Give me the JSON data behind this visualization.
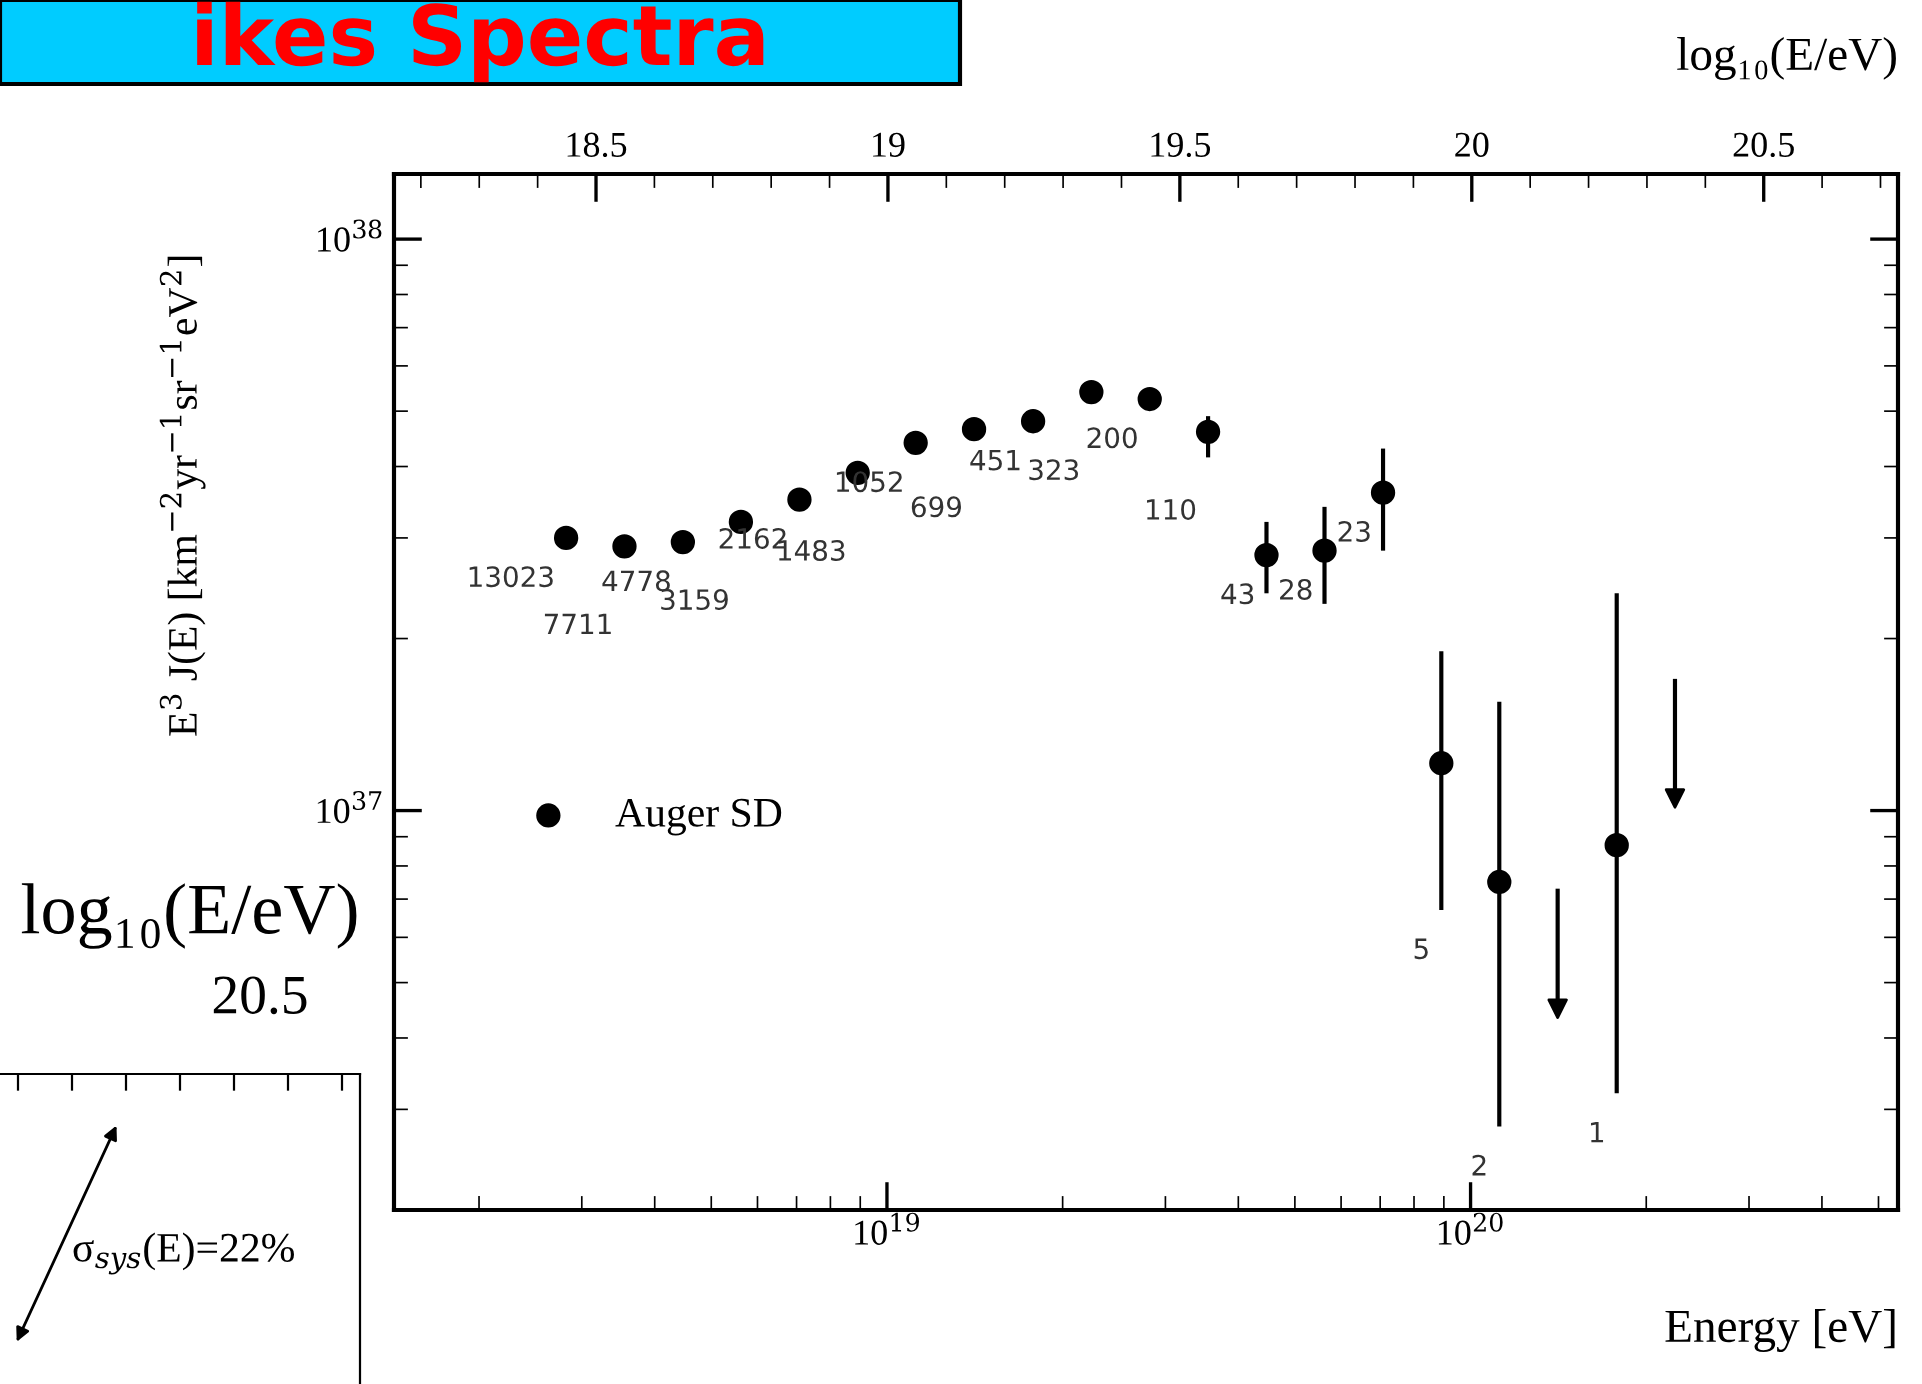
{
  "chart_data": [
    {
      "type": "scatter",
      "title": "ikes Spectra",
      "xlabel": "Energy [eV]",
      "ylabel": "E$^{3}$ J(E) [km$^{−2}$yr$^{−1}$sr$^{−1}$eV$^{2}$]",
      "x2label": "log₁₀(E/eV)",
      "log": "xy",
      "xlim": [
        1.43e+18,
        5.4e+20
      ],
      "ylim": [
        2e+36,
        1.3e+38
      ],
      "xticks": [
        {
          "value": 1e+19,
          "label": "10$^{19}$"
        },
        {
          "value": 1e+20,
          "label": "10$^{20}$"
        }
      ],
      "yticks": [
        {
          "value": 1e+37,
          "label": "10$^{37}$"
        },
        {
          "value": 1e+38,
          "label": "10$^{38}$"
        }
      ],
      "x2lim": [
        18.154,
        20.73
      ],
      "x2ticks": [
        18.5,
        19,
        19.5,
        20,
        20.5
      ],
      "legend": "left",
      "grid": false,
      "series": [
        {
          "name": "Auger SD",
          "color": "#000000",
          "marker": "circle",
          "x": [
            2.82e+18,
            3.55e+18,
            4.47e+18,
            5.62e+18,
            7.08e+18,
            8.91e+18,
            1.12e+19,
            1.41e+19,
            1.78e+19,
            2.24e+19,
            2.82e+19,
            3.55e+19,
            4.47e+19,
            5.62e+19,
            7.08e+19,
            8.91e+19,
            1.12e+20,
            1.78e+20
          ],
          "values": [
            3e+37,
            2.9e+37,
            2.95e+37,
            3.2e+37,
            3.5e+37,
            3.9e+37,
            4.4e+37,
            4.65e+37,
            4.8e+37,
            5.4e+37,
            5.25e+37,
            4.6e+37,
            2.8e+37,
            2.85e+37,
            3.6e+37,
            1.21e+37,
            7.5e+36,
            8.7e+36
          ],
          "errors": [
            null,
            null,
            null,
            null,
            null,
            null,
            null,
            null,
            null,
            null,
            null,
            [
              4.15e+37,
              4.9e+37
            ],
            [
              2.4e+37,
              3.2e+37
            ],
            [
              2.3e+37,
              3.4e+37
            ],
            [
              2.85e+37,
              4.3e+37
            ],
            [
              6.7e+36,
              1.9e+37
            ],
            [
              2.8e+36,
              1.55e+37
            ],
            [
              3.2e+36,
              2.4e+37
            ]
          ]
        },
        {
          "color": "#000000",
          "marker": "triangle",
          "x": [
            1.41e+20,
            2.24e+20
          ],
          "values": [
            4.5e+36,
            1.05e+37
          ],
          "errors": [
            [
              4.5e+36,
              7.3e+36
            ],
            [
              1.05e+37,
              1.7e+37
            ]
          ]
        }
      ],
      "annotations": [
        {
          "text": "13023",
          "x": 2.82e+18,
          "y": 3e+37
        },
        {
          "text": "7711",
          "x": 3.55e+18,
          "y": 2.9e+37
        },
        {
          "text": "4778",
          "x": 4.47e+18,
          "y": 2.95e+37
        },
        {
          "text": "3159",
          "x": 5.62e+18,
          "y": 3.2e+37
        },
        {
          "text": "2162",
          "x": 7.08e+18,
          "y": 3.5e+37
        },
        {
          "text": "1483",
          "x": 8.91e+18,
          "y": 3.9e+37
        },
        {
          "text": "1052",
          "x": 1.12e+19,
          "y": 4.4e+37
        },
        {
          "text": "699",
          "x": 1.41e+19,
          "y": 4.65e+37
        },
        {
          "text": "451",
          "x": 1.78e+19,
          "y": 4.8e+37
        },
        {
          "text": "323",
          "x": 2.24e+19,
          "y": 5.4e+37
        },
        {
          "text": "200",
          "x": 2.82e+19,
          "y": 5.25e+37
        },
        {
          "text": "110",
          "x": 3.55e+19,
          "y": 4.6e+37
        },
        {
          "text": "43",
          "x": 4.47e+19,
          "y": 2.8e+37
        },
        {
          "text": "28",
          "x": 5.62e+19,
          "y": 2.85e+37
        },
        {
          "text": "23",
          "x": 7.08e+19,
          "y": 3.6e+37
        },
        {
          "text": "5",
          "x": 8.91e+19,
          "y": 6.7e+36
        },
        {
          "text": "2",
          "x": 1.12e+20,
          "y": 2.8e+36
        },
        {
          "text": "1",
          "x": 1.78e+20,
          "y": 3.2e+36
        }
      ]
    },
    {
      "type": "other",
      "x2label": "log₁₀(E/eV)",
      "annotations": [
        "20.5",
        "σ$_{sys}$(E)=22%"
      ]
    }
  ]
}
